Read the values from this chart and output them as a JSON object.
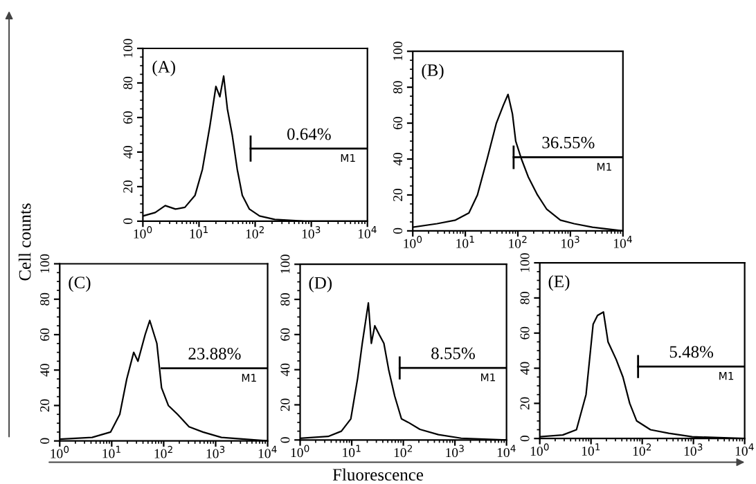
{
  "chart_data": [
    {
      "type": "line",
      "title": "(A)",
      "ylabel": "Cell counts",
      "log": "x",
      "xlim": [
        1,
        10000
      ],
      "ylim": [
        0,
        100
      ],
      "xticks": [
        {
          "value": 1,
          "label": "10$^{0}$"
        },
        {
          "value": 10,
          "label": "10$^{1}$"
        },
        {
          "value": 100,
          "label": "10$^{2}$"
        },
        {
          "value": 1000,
          "label": "10$^{3}$"
        },
        {
          "value": 10000,
          "label": "10$^{4}$"
        }
      ],
      "yticks": [
        0,
        20,
        40,
        60,
        80,
        100
      ],
      "grid": false,
      "series": [
        {
          "color": "#000000",
          "x": [
            1,
            1.66,
            2.5,
            3.8,
            5.6,
            8.5,
            11.5,
            15.6,
            20,
            23.5,
            27.5,
            32,
            39,
            48,
            59,
            79,
            120,
            224,
            760,
            10000
          ],
          "values": [
            3,
            5,
            9,
            7,
            8,
            15,
            30,
            55,
            78,
            72,
            84,
            65,
            50,
            30,
            15,
            7,
            3,
            1,
            0,
            0
          ]
        },
        {
          "name": "M1",
          "color": "#000000",
          "x": [
            83,
            10000
          ],
          "values": [
            42,
            42
          ],
          "errors": [
            7,
            null
          ]
        }
      ],
      "annotations": [
        "0.64%"
      ]
    },
    {
      "type": "line",
      "title": "(B)",
      "log": "x",
      "xlim": [
        1,
        10000
      ],
      "ylim": [
        0,
        100
      ],
      "xticks": [
        {
          "value": 1,
          "label": "10$^{0}$"
        },
        {
          "value": 10,
          "label": "10$^{1}$"
        },
        {
          "value": 100,
          "label": "10$^{2}$"
        },
        {
          "value": 1000,
          "label": "10$^{3}$"
        },
        {
          "value": 10000,
          "label": "10$^{4}$"
        }
      ],
      "yticks": [
        0,
        20,
        40,
        60,
        80,
        100
      ],
      "grid": false,
      "series": [
        {
          "color": "#000000",
          "x": [
            1,
            2.9,
            6.5,
            11.7,
            17,
            26,
            39,
            53,
            65,
            79,
            91,
            117,
            158,
            236,
            355,
            645,
            1175,
            2630,
            10000
          ],
          "values": [
            2,
            4,
            6,
            10,
            20,
            40,
            60,
            70,
            76,
            65,
            50,
            40,
            30,
            20,
            12,
            6,
            4,
            2,
            0
          ]
        },
        {
          "name": "M1",
          "color": "#000000",
          "x": [
            83,
            10000
          ],
          "values": [
            41,
            41
          ],
          "errors": [
            6,
            null
          ]
        }
      ],
      "annotations": [
        "36.55%"
      ]
    },
    {
      "type": "line",
      "title": "(C)",
      "log": "x",
      "xlim": [
        1,
        10000
      ],
      "ylim": [
        0,
        100
      ],
      "xticks": [
        {
          "value": 1,
          "label": "10$^{0}$"
        },
        {
          "value": 10,
          "label": "10$^{1}$"
        },
        {
          "value": 100,
          "label": "10$^{2}$"
        },
        {
          "value": 1000,
          "label": "10$^{3}$"
        },
        {
          "value": 10000,
          "label": "10$^{4}$"
        }
      ],
      "yticks": [
        0,
        20,
        40,
        60,
        80,
        100
      ],
      "grid": false,
      "series": [
        {
          "color": "#000000",
          "x": [
            1,
            4.2,
            9.5,
            14.3,
            19.5,
            26.5,
            32,
            44,
            54,
            74,
            91,
            123,
            185,
            308,
            570,
            1290,
            10000
          ],
          "values": [
            1,
            2,
            5,
            15,
            35,
            50,
            45,
            60,
            68,
            55,
            30,
            20,
            15,
            8,
            5,
            2,
            0
          ]
        },
        {
          "name": "M1",
          "color": "#000000",
          "x": [
            91,
            10000
          ],
          "values": [
            41,
            41
          ]
        }
      ],
      "annotations": [
        "23.88%"
      ]
    },
    {
      "type": "line",
      "title": "(D)",
      "xlabel": "Fluorescence",
      "log": "x",
      "xlim": [
        1,
        10000
      ],
      "ylim": [
        0,
        100
      ],
      "xticks": [
        {
          "value": 1,
          "label": "10$^{0}$"
        },
        {
          "value": 10,
          "label": "10$^{1}$"
        },
        {
          "value": 100,
          "label": "10$^{2}$"
        },
        {
          "value": 1000,
          "label": "10$^{3}$"
        },
        {
          "value": 10000,
          "label": "10$^{4}$"
        }
      ],
      "yticks": [
        0,
        20,
        40,
        60,
        80,
        100
      ],
      "grid": false,
      "series": [
        {
          "color": "#000000",
          "x": [
            1,
            3.5,
            6.3,
            9.6,
            13,
            16,
            21,
            24,
            28,
            34,
            42,
            52,
            68,
            92,
            125,
            210,
            480,
            1320,
            10000
          ],
          "values": [
            1,
            2,
            5,
            12,
            35,
            55,
            78,
            55,
            65,
            60,
            55,
            40,
            25,
            12,
            10,
            6,
            3,
            1,
            0
          ]
        },
        {
          "name": "M1",
          "color": "#000000",
          "x": [
            85,
            10000
          ],
          "values": [
            41,
            41
          ],
          "errors": [
            6,
            null
          ]
        }
      ],
      "annotations": [
        "8.55%"
      ]
    },
    {
      "type": "line",
      "title": "(E)",
      "log": "x",
      "xlim": [
        1,
        10000
      ],
      "ylim": [
        0,
        100
      ],
      "xticks": [
        {
          "value": 1,
          "label": "10$^{0}$"
        },
        {
          "value": 10,
          "label": "10$^{1}$"
        },
        {
          "value": 100,
          "label": "10$^{2}$"
        },
        {
          "value": 1000,
          "label": "10$^{3}$"
        },
        {
          "value": 10000,
          "label": "10$^{4}$"
        }
      ],
      "yticks": [
        0,
        20,
        40,
        60,
        80,
        100
      ],
      "grid": false,
      "series": [
        {
          "color": "#000000",
          "x": [
            1,
            2.8,
            5.2,
            8,
            11,
            13.4,
            17.5,
            21.5,
            31,
            42,
            57,
            78,
            145,
            330,
            940,
            10000
          ],
          "values": [
            1,
            2,
            5,
            25,
            65,
            70,
            72,
            55,
            45,
            35,
            20,
            10,
            5,
            3,
            1,
            0
          ]
        },
        {
          "name": "M1",
          "color": "#000000",
          "x": [
            83,
            10000
          ],
          "values": [
            41,
            41
          ],
          "errors": [
            6,
            null
          ]
        }
      ],
      "annotations": [
        "5.48%"
      ]
    }
  ]
}
